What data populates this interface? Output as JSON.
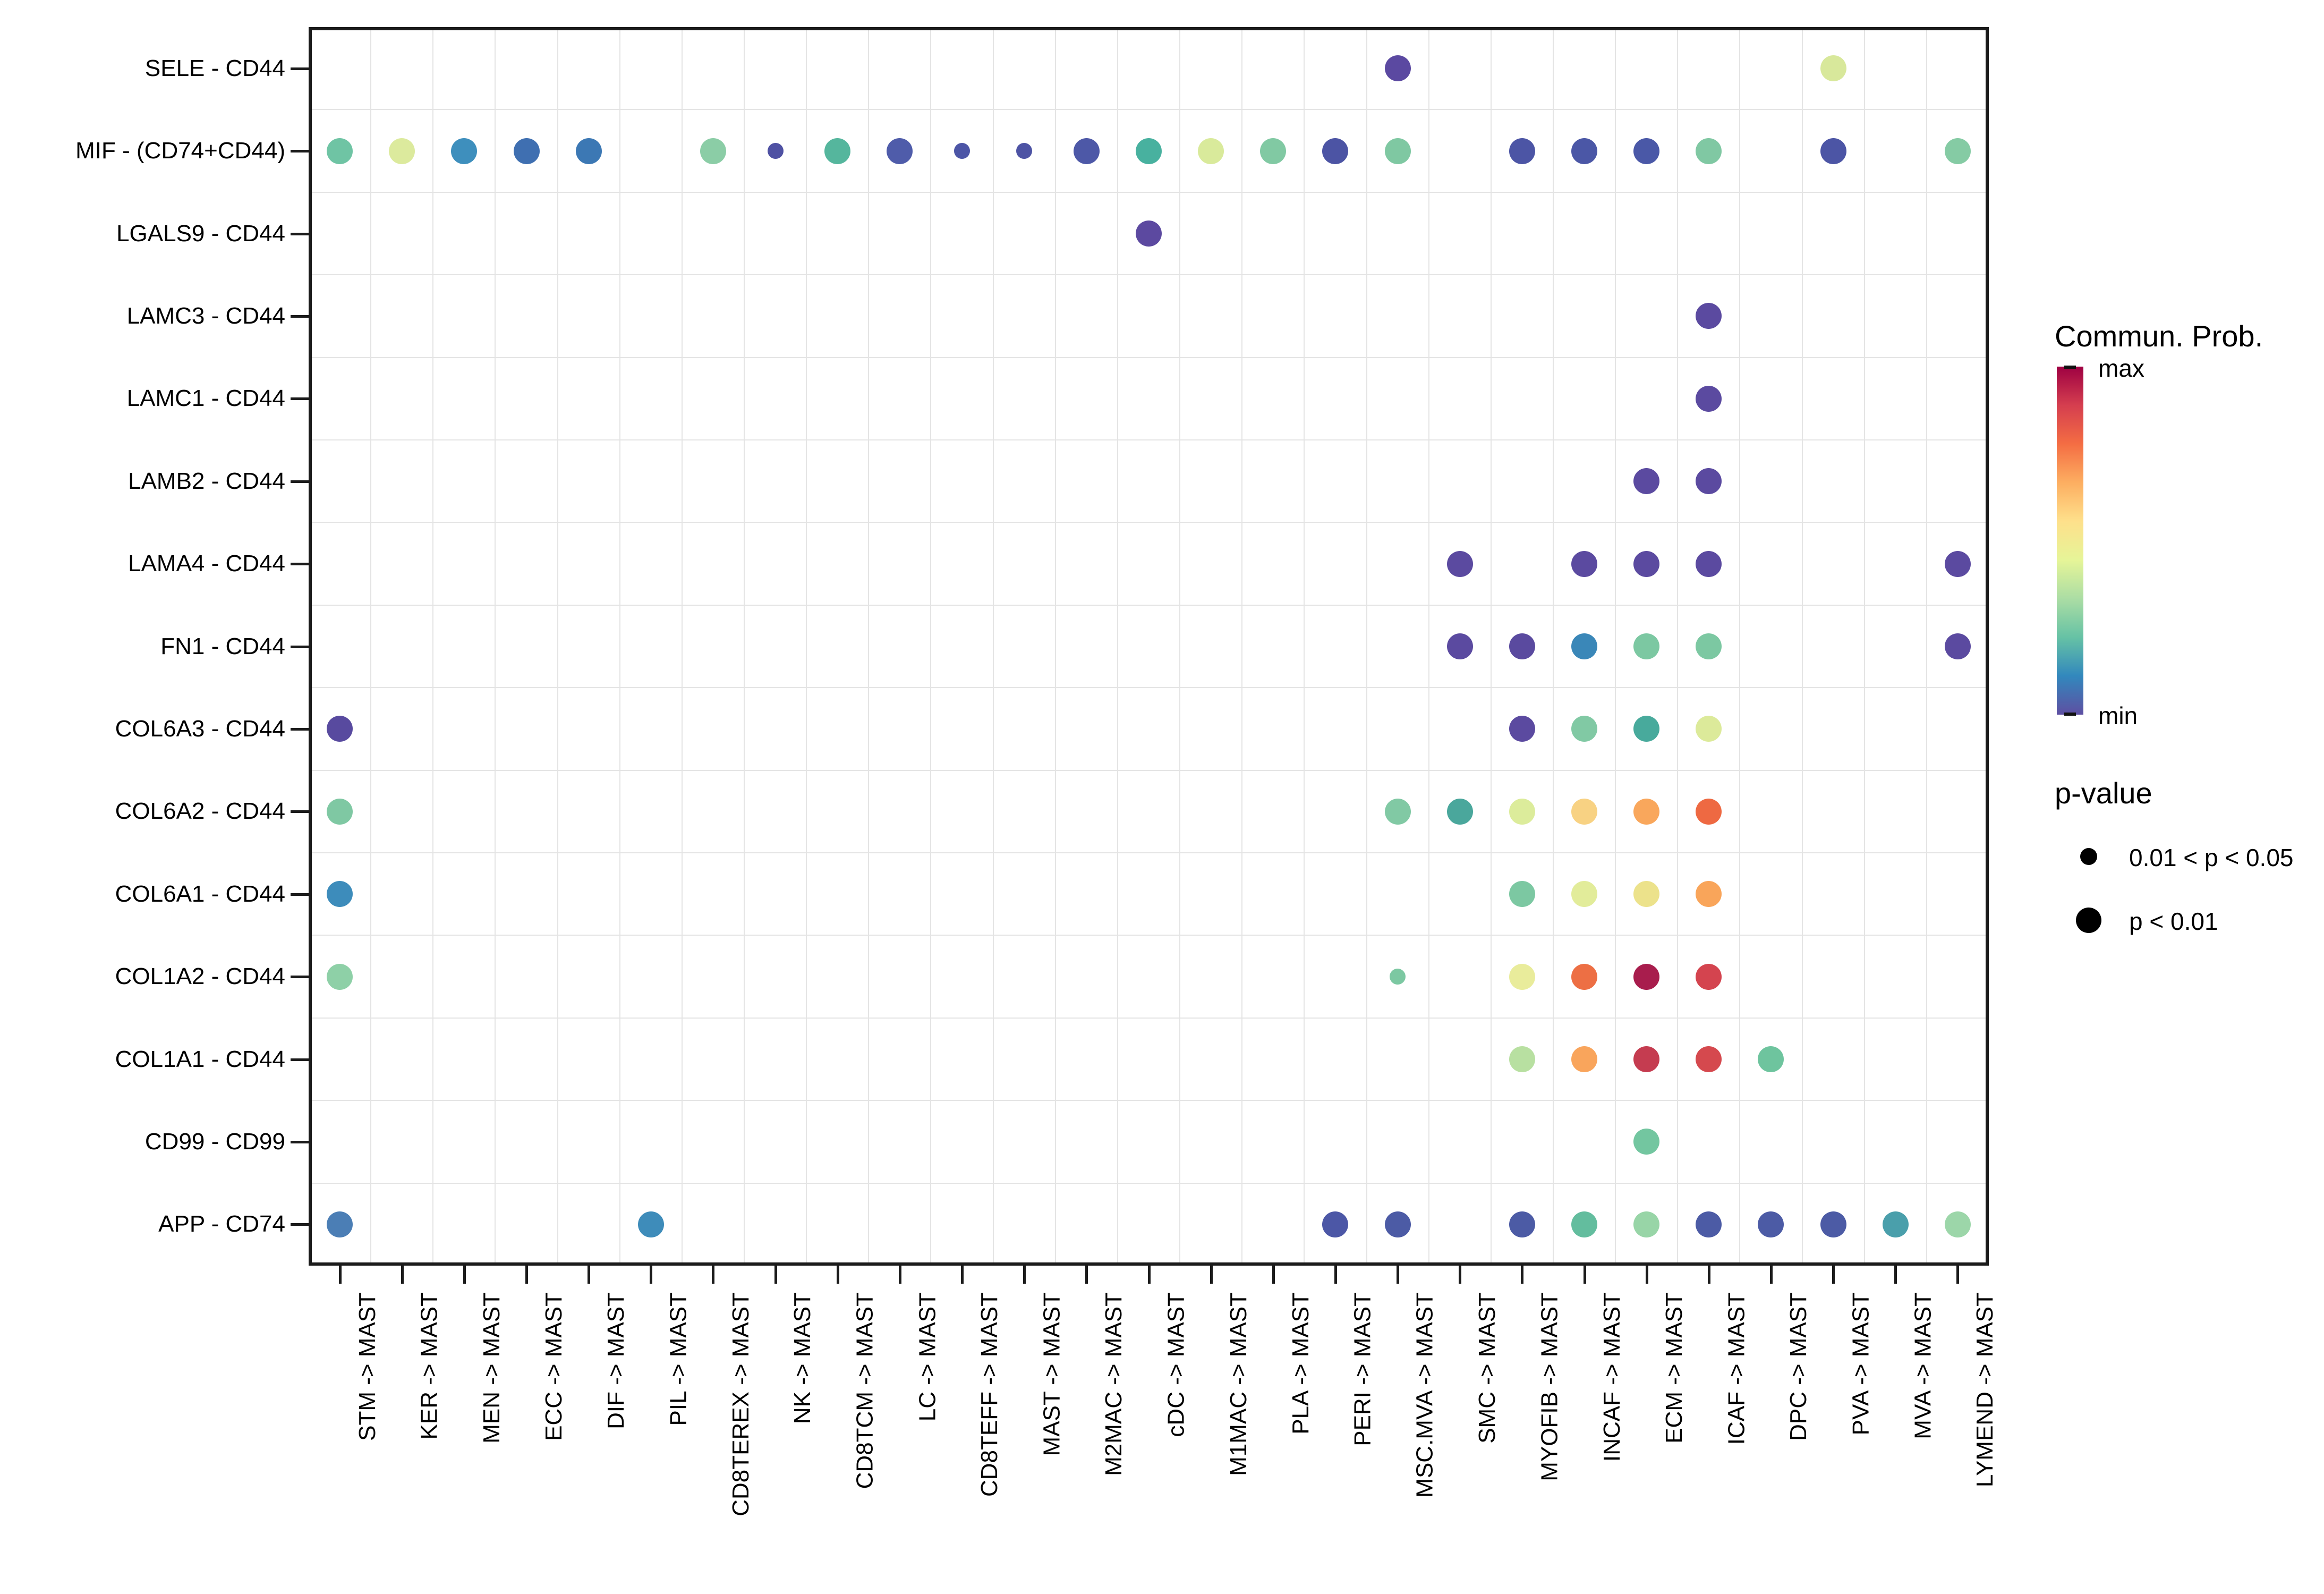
{
  "legend": {
    "colorbar": {
      "title": "Commun. Prob.",
      "max_label": "max",
      "min_label": "min",
      "gradient_top_to_bottom": [
        "#9E0142",
        "#D53E4F",
        "#F46D43",
        "#FDAE61",
        "#FEE08B",
        "#E6F598",
        "#ABDDA4",
        "#66C2A5",
        "#3288BD",
        "#5E4FA2"
      ]
    },
    "pvalue": {
      "title": "p-value",
      "items": [
        {
          "label": "0.01 < p < 0.05",
          "size": "small"
        },
        {
          "label": "p < 0.01",
          "size": "large"
        }
      ]
    }
  },
  "chart_data": {
    "type": "scatter",
    "subtype": "bubble-dotplot",
    "grid": true,
    "x_categories": [
      "STM -> MAST",
      "KER -> MAST",
      "MEN -> MAST",
      "ECC -> MAST",
      "DIF -> MAST",
      "PIL -> MAST",
      "CD8TEREX -> MAST",
      "NK -> MAST",
      "CD8TCM -> MAST",
      "LC -> MAST",
      "CD8TEFF -> MAST",
      "MAST -> MAST",
      "M2MAC -> MAST",
      "cDC -> MAST",
      "M1MAC -> MAST",
      "PLA -> MAST",
      "PERI -> MAST",
      "MSC.MVA -> MAST",
      "SMC -> MAST",
      "MYOFIB -> MAST",
      "INCAF -> MAST",
      "ECM -> MAST",
      "ICAF -> MAST",
      "DPC -> MAST",
      "PVA -> MAST",
      "MVA -> MAST",
      "LYMEND -> MAST"
    ],
    "y_categories": [
      "SELE - CD44",
      "MIF - (CD74+CD44)",
      "LGALS9 - CD44",
      "LAMC3 - CD44",
      "LAMC1 - CD44",
      "LAMB2 - CD44",
      "LAMA4 - CD44",
      "FN1 - CD44",
      "COL6A3 - CD44",
      "COL6A2 - CD44",
      "COL6A1 - CD44",
      "COL1A2 - CD44",
      "COL1A1 - CD44",
      "CD99 - CD99",
      "APP - CD74"
    ],
    "color_scale": {
      "title": "Commun. Prob.",
      "min_color": "#5E4FA2",
      "max_color": "#9E0142",
      "palette": "Spectral reversed"
    },
    "size_scale": {
      "small": "0.01 < p < 0.05",
      "large": "p < 0.01"
    },
    "points": [
      {
        "yi": 0,
        "xi": 17,
        "color": "#5b49a1",
        "p": "p < 0.01"
      },
      {
        "yi": 0,
        "xi": 24,
        "color": "#d8e89b",
        "p": "p < 0.01"
      },
      {
        "yi": 1,
        "xi": 0,
        "color": "#6fc4a4",
        "p": "p < 0.01"
      },
      {
        "yi": 1,
        "xi": 1,
        "color": "#dcea9d",
        "p": "p < 0.01"
      },
      {
        "yi": 1,
        "xi": 2,
        "color": "#3e8fbd",
        "p": "p < 0.01"
      },
      {
        "yi": 1,
        "xi": 3,
        "color": "#3f6fb1",
        "p": "p < 0.01"
      },
      {
        "yi": 1,
        "xi": 4,
        "color": "#3c78b4",
        "p": "p < 0.01"
      },
      {
        "yi": 1,
        "xi": 6,
        "color": "#8bcda6",
        "p": "p < 0.01"
      },
      {
        "yi": 1,
        "xi": 7,
        "color": "#4f51a3",
        "p": "0.01 < p < 0.05"
      },
      {
        "yi": 1,
        "xi": 8,
        "color": "#55b69d",
        "p": "p < 0.01"
      },
      {
        "yi": 1,
        "xi": 9,
        "color": "#4f5caa",
        "p": "p < 0.01"
      },
      {
        "yi": 1,
        "xi": 10,
        "color": "#4c55a6",
        "p": "0.01 < p < 0.05"
      },
      {
        "yi": 1,
        "xi": 11,
        "color": "#4d53a4",
        "p": "0.01 < p < 0.05"
      },
      {
        "yi": 1,
        "xi": 12,
        "color": "#4d58a7",
        "p": "p < 0.01"
      },
      {
        "yi": 1,
        "xi": 13,
        "color": "#48b19f",
        "p": "p < 0.01"
      },
      {
        "yi": 1,
        "xi": 14,
        "color": "#d9ea9b",
        "p": "p < 0.01"
      },
      {
        "yi": 1,
        "xi": 15,
        "color": "#81c9a3",
        "p": "p < 0.01"
      },
      {
        "yi": 1,
        "xi": 16,
        "color": "#4c54a4",
        "p": "p < 0.01"
      },
      {
        "yi": 1,
        "xi": 17,
        "color": "#7fc8a2",
        "p": "p < 0.01"
      },
      {
        "yi": 1,
        "xi": 19,
        "color": "#4c55a5",
        "p": "p < 0.01"
      },
      {
        "yi": 1,
        "xi": 20,
        "color": "#4b57a6",
        "p": "p < 0.01"
      },
      {
        "yi": 1,
        "xi": 21,
        "color": "#4a58a7",
        "p": "p < 0.01"
      },
      {
        "yi": 1,
        "xi": 22,
        "color": "#80c8a3",
        "p": "p < 0.01"
      },
      {
        "yi": 1,
        "xi": 24,
        "color": "#4c55a5",
        "p": "p < 0.01"
      },
      {
        "yi": 1,
        "xi": 26,
        "color": "#85cba4",
        "p": "p < 0.01"
      },
      {
        "yi": 2,
        "xi": 13,
        "color": "#5c49a0",
        "p": "p < 0.01"
      },
      {
        "yi": 3,
        "xi": 22,
        "color": "#5b4aa0",
        "p": "p < 0.01"
      },
      {
        "yi": 4,
        "xi": 22,
        "color": "#5b4aa0",
        "p": "p < 0.01"
      },
      {
        "yi": 5,
        "xi": 21,
        "color": "#5b4aa0",
        "p": "p < 0.01"
      },
      {
        "yi": 5,
        "xi": 22,
        "color": "#5b4aa0",
        "p": "p < 0.01"
      },
      {
        "yi": 6,
        "xi": 18,
        "color": "#5b4aa0",
        "p": "p < 0.01"
      },
      {
        "yi": 6,
        "xi": 20,
        "color": "#5b4aa0",
        "p": "p < 0.01"
      },
      {
        "yi": 6,
        "xi": 21,
        "color": "#5b4aa0",
        "p": "p < 0.01"
      },
      {
        "yi": 6,
        "xi": 22,
        "color": "#5b4aa0",
        "p": "p < 0.01"
      },
      {
        "yi": 6,
        "xi": 26,
        "color": "#5b4aa0",
        "p": "p < 0.01"
      },
      {
        "yi": 7,
        "xi": 18,
        "color": "#5b4aa0",
        "p": "p < 0.01"
      },
      {
        "yi": 7,
        "xi": 19,
        "color": "#5a4a9f",
        "p": "p < 0.01"
      },
      {
        "yi": 7,
        "xi": 20,
        "color": "#3a87b8",
        "p": "p < 0.01"
      },
      {
        "yi": 7,
        "xi": 21,
        "color": "#7cc8a2",
        "p": "p < 0.01"
      },
      {
        "yi": 7,
        "xi": 22,
        "color": "#7cc8a2",
        "p": "p < 0.01"
      },
      {
        "yi": 7,
        "xi": 26,
        "color": "#5b4aa0",
        "p": "p < 0.01"
      },
      {
        "yi": 8,
        "xi": 0,
        "color": "#584a9f",
        "p": "p < 0.01"
      },
      {
        "yi": 8,
        "xi": 19,
        "color": "#5b4aa0",
        "p": "p < 0.01"
      },
      {
        "yi": 8,
        "xi": 20,
        "color": "#81c9a4",
        "p": "p < 0.01"
      },
      {
        "yi": 8,
        "xi": 21,
        "color": "#48aa9c",
        "p": "p < 0.01"
      },
      {
        "yi": 8,
        "xi": 22,
        "color": "#dcea9a",
        "p": "p < 0.01"
      },
      {
        "yi": 9,
        "xi": 0,
        "color": "#7fc8a3",
        "p": "p < 0.01"
      },
      {
        "yi": 9,
        "xi": 17,
        "color": "#81c9a4",
        "p": "p < 0.01"
      },
      {
        "yi": 9,
        "xi": 18,
        "color": "#4aa79c",
        "p": "p < 0.01"
      },
      {
        "yi": 9,
        "xi": 19,
        "color": "#dcec9b",
        "p": "p < 0.01"
      },
      {
        "yi": 9,
        "xi": 20,
        "color": "#f8d283",
        "p": "p < 0.01"
      },
      {
        "yi": 9,
        "xi": 21,
        "color": "#f9a75c",
        "p": "p < 0.01"
      },
      {
        "yi": 9,
        "xi": 22,
        "color": "#ee6942",
        "p": "p < 0.01"
      },
      {
        "yi": 10,
        "xi": 0,
        "color": "#3d8cbb",
        "p": "p < 0.01"
      },
      {
        "yi": 10,
        "xi": 19,
        "color": "#7cc8a2",
        "p": "p < 0.01"
      },
      {
        "yi": 10,
        "xi": 20,
        "color": "#e2ec9a",
        "p": "p < 0.01"
      },
      {
        "yi": 10,
        "xi": 21,
        "color": "#ece28b",
        "p": "p < 0.01"
      },
      {
        "yi": 10,
        "xi": 22,
        "color": "#f9a55a",
        "p": "p < 0.01"
      },
      {
        "yi": 11,
        "xi": 0,
        "color": "#8ed0a7",
        "p": "p < 0.01"
      },
      {
        "yi": 11,
        "xi": 17,
        "color": "#7cc8a2",
        "p": "0.01 < p < 0.05"
      },
      {
        "yi": 11,
        "xi": 19,
        "color": "#e9ec9b",
        "p": "p < 0.01"
      },
      {
        "yi": 11,
        "xi": 20,
        "color": "#ed6f44",
        "p": "p < 0.01"
      },
      {
        "yi": 11,
        "xi": 21,
        "color": "#a81d4d",
        "p": "p < 0.01"
      },
      {
        "yi": 11,
        "xi": 22,
        "color": "#d4444f",
        "p": "p < 0.01"
      },
      {
        "yi": 12,
        "xi": 19,
        "color": "#b8e0a1",
        "p": "p < 0.01"
      },
      {
        "yi": 12,
        "xi": 20,
        "color": "#f9a55c",
        "p": "p < 0.01"
      },
      {
        "yi": 12,
        "xi": 21,
        "color": "#c53c50",
        "p": "p < 0.01"
      },
      {
        "yi": 12,
        "xi": 22,
        "color": "#d5494e",
        "p": "p < 0.01"
      },
      {
        "yi": 12,
        "xi": 23,
        "color": "#6ec49e",
        "p": "p < 0.01"
      },
      {
        "yi": 13,
        "xi": 21,
        "color": "#73c6a0",
        "p": "p < 0.01"
      },
      {
        "yi": 14,
        "xi": 0,
        "color": "#4b7eb5",
        "p": "p < 0.01"
      },
      {
        "yi": 14,
        "xi": 5,
        "color": "#3e8cba",
        "p": "p < 0.01"
      },
      {
        "yi": 14,
        "xi": 16,
        "color": "#4c57a6",
        "p": "p < 0.01"
      },
      {
        "yi": 14,
        "xi": 17,
        "color": "#4c5ba5",
        "p": "p < 0.01"
      },
      {
        "yi": 14,
        "xi": 19,
        "color": "#4c5ba5",
        "p": "p < 0.01"
      },
      {
        "yi": 14,
        "xi": 20,
        "color": "#63bd9e",
        "p": "p < 0.01"
      },
      {
        "yi": 14,
        "xi": 21,
        "color": "#98d5a7",
        "p": "p < 0.01"
      },
      {
        "yi": 14,
        "xi": 22,
        "color": "#4c5ba5",
        "p": "p < 0.01"
      },
      {
        "yi": 14,
        "xi": 23,
        "color": "#4c5ba5",
        "p": "p < 0.01"
      },
      {
        "yi": 14,
        "xi": 24,
        "color": "#4c5ba5",
        "p": "p < 0.01"
      },
      {
        "yi": 14,
        "xi": 25,
        "color": "#4a9fab",
        "p": "p < 0.01"
      },
      {
        "yi": 14,
        "xi": 26,
        "color": "#9cd6a9",
        "p": "p < 0.01"
      }
    ]
  }
}
